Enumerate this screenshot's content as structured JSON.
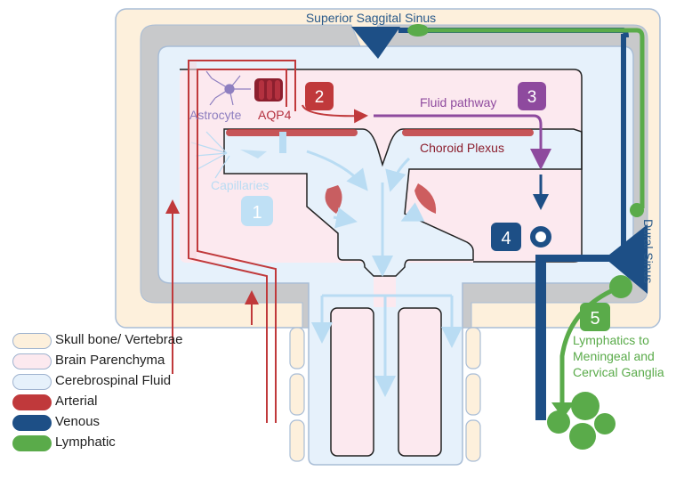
{
  "labels": {
    "superior_sagittal_sinus": "Superior Saggital Sinus",
    "astrocyte": "Astrocyte",
    "aqp4": "AQP4",
    "fluid_pathway": "Fluid pathway",
    "choroid_plexus": "Choroid Plexus",
    "capillaries": "Capillaries",
    "dural_sinus": "Dural Sinus",
    "lymphatics_line1": "Lymphatics to",
    "lymphatics_line2": "Meningeal and",
    "lymphatics_line3": "Cervical Ganglia"
  },
  "badges": [
    {
      "number": "1",
      "color": "#bfe0f5",
      "text_color": "#ffffff"
    },
    {
      "number": "2",
      "color": "#c0393b",
      "text_color": "#ffffff"
    },
    {
      "number": "3",
      "color": "#8e4a9e",
      "text_color": "#ffffff"
    },
    {
      "number": "4",
      "color": "#1d4f86",
      "text_color": "#ffffff"
    },
    {
      "number": "5",
      "color": "#5aab4a",
      "text_color": "#ffffff"
    }
  ],
  "legend": [
    {
      "label": "Skull bone/ Vertebrae",
      "color": "#fdf0dc"
    },
    {
      "label": "Brain Parenchyma",
      "color": "#fce9ef"
    },
    {
      "label": "Cerebrospinal Fluid",
      "color": "#e6f1fb"
    },
    {
      "label": "Arterial",
      "color": "#c0393b"
    },
    {
      "label": "Venous",
      "color": "#1d4f86"
    },
    {
      "label": "Lymphatic",
      "color": "#5aab4a"
    }
  ],
  "colors": {
    "bone": "#fdf0dc",
    "dura": "#c8c9cb",
    "csf": "#e6f1fb",
    "parenchyma": "#fce9ef",
    "arterial": "#c0393b",
    "venous": "#1d4f86",
    "lymphatic": "#5aab4a",
    "csf_flow": "#b9dcf3",
    "fluid_pathway": "#8e4a9e"
  }
}
